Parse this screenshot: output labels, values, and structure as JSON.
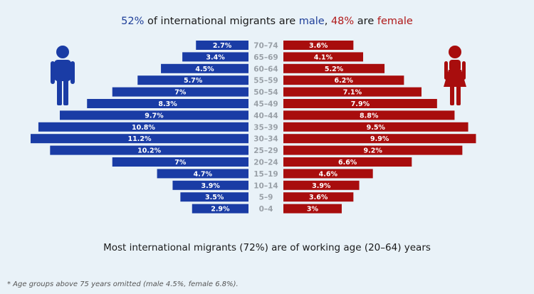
{
  "title": {
    "male_pct": "52%",
    "part1": " of international migrants are ",
    "male_word": "male",
    "part2": ", ",
    "female_pct": "48%",
    "part3": " are ",
    "female_word": "female"
  },
  "colors": {
    "male": "#1a3ca5",
    "female": "#a80d0d",
    "background": "#e9f2f8",
    "male_icon": "#1a3ca5",
    "female_icon": "#a80d0d"
  },
  "icons": {
    "male": "male-person-icon",
    "female": "female-person-icon"
  },
  "chart_data": {
    "type": "bar",
    "subtype": "population-pyramid",
    "categories": [
      "70–74",
      "65–69",
      "60–64",
      "55–59",
      "50–54",
      "45–49",
      "40–44",
      "35–39",
      "30–34",
      "25–29",
      "20–24",
      "15–19",
      "10–14",
      "5–9",
      "0–4"
    ],
    "series": [
      {
        "name": "male",
        "values": [
          2.7,
          3.4,
          4.5,
          5.7,
          7,
          8.3,
          9.7,
          10.8,
          11.2,
          10.2,
          7,
          4.7,
          3.9,
          3.5,
          2.9
        ],
        "labels": [
          "2.7%",
          "3.4%",
          "4.5%",
          "5.7%",
          "7%",
          "8.3%",
          "9.7%",
          "10.8%",
          "11.2%",
          "10.2%",
          "7%",
          "4.7%",
          "3.9%",
          "3.5%",
          "2.9%"
        ]
      },
      {
        "name": "female",
        "values": [
          3.6,
          4.1,
          5.2,
          6.2,
          7.1,
          7.9,
          8.8,
          9.5,
          9.9,
          9.2,
          6.6,
          4.6,
          3.9,
          3.6,
          3.0
        ],
        "labels": [
          "3.6%",
          "4.1%",
          "5.2%",
          "6.2%",
          "7.1%",
          "7.9%",
          "8.8%",
          "9.5%",
          "9.9%",
          "9.2%",
          "6.6%",
          "4.6%",
          "3.9%",
          "3.6%",
          "3%"
        ]
      }
    ],
    "units": "percent",
    "xlim": [
      0,
      11.5
    ],
    "grid": false,
    "legend": "none"
  },
  "subtitle": "Most international migrants (72%) are of working age (20–64) years",
  "footnote": "* Age groups above 75 years omitted (male 4.5%, female 6.8%)."
}
